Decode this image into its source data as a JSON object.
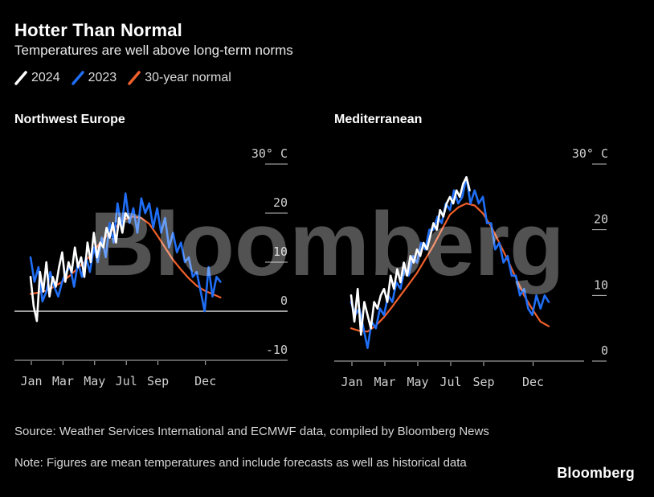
{
  "header": {
    "title": "Hotter Than Normal",
    "subtitle": "Temperatures are well above long-term norms"
  },
  "legend": [
    {
      "label": "2024",
      "color": "#ffffff"
    },
    {
      "label": "2023",
      "color": "#1f6ef5"
    },
    {
      "label": "30-year normal",
      "color": "#f0602b"
    }
  ],
  "footer": {
    "source": "Source: Weather Services International and ECMWF data, compiled by Bloomberg News",
    "note": "Note: Figures are mean temperatures and include forecasts as well as historical data"
  },
  "watermark": "Bloomberg",
  "brand": "Bloomberg",
  "chart_data": [
    {
      "type": "line",
      "title": "Northwest Europe",
      "ylabel": "30° C",
      "ylim": [
        -10,
        30
      ],
      "yticks": [
        -10,
        0,
        10,
        20,
        30
      ],
      "ytick_labels": [
        "-10",
        "0",
        "10",
        "20",
        "30° C"
      ],
      "zero_line": true,
      "x_ticks": [
        "Jan",
        "Mar",
        "May",
        "Jul",
        "Sep",
        "Dec"
      ],
      "x_tick_months": [
        0,
        2,
        4,
        6,
        8,
        11
      ],
      "series": [
        {
          "name": "30-year normal",
          "color": "#f0602b",
          "x": [
            0,
            0.5,
            1,
            1.5,
            2,
            2.5,
            3,
            3.5,
            4,
            4.5,
            5,
            5.5,
            6,
            6.5,
            7,
            7.5,
            8,
            8.5,
            9,
            9.5,
            10,
            10.5,
            11,
            11.5,
            12
          ],
          "y": [
            3.5,
            3.8,
            4.2,
            5,
            6,
            7.3,
            8.8,
            10.3,
            12.3,
            14.3,
            16,
            17.5,
            18.8,
            19.3,
            19,
            17.8,
            15.5,
            13,
            10.5,
            8.5,
            6.7,
            5.2,
            4.2,
            3.5,
            2.8
          ]
        },
        {
          "name": "2023",
          "color": "#1f6ef5",
          "x": [
            0,
            0.25,
            0.5,
            0.75,
            1,
            1.25,
            1.5,
            1.75,
            2,
            2.25,
            2.5,
            2.75,
            3,
            3.25,
            3.5,
            3.75,
            4,
            4.25,
            4.5,
            4.75,
            5,
            5.25,
            5.5,
            5.75,
            6,
            6.25,
            6.5,
            6.75,
            7,
            7.25,
            7.5,
            7.75,
            8,
            8.25,
            8.5,
            8.75,
            9,
            9.25,
            9.5,
            9.75,
            10,
            10.25,
            10.5,
            10.75,
            11,
            11.25,
            11.5,
            11.75,
            12
          ],
          "y": [
            11,
            6,
            9,
            2,
            4,
            8,
            5,
            3,
            6,
            8,
            9,
            5,
            10,
            7,
            11,
            8,
            13,
            10,
            15,
            11,
            18,
            14,
            22,
            17,
            24,
            18,
            21,
            16,
            23,
            20,
            22,
            17,
            21,
            16,
            19,
            13,
            16,
            12,
            14,
            10,
            11,
            7,
            8,
            4,
            0,
            9,
            3,
            7,
            6
          ]
        },
        {
          "name": "2024",
          "color": "#ffffff",
          "x": [
            0,
            0.2,
            0.4,
            0.6,
            0.8,
            1,
            1.2,
            1.4,
            1.6,
            1.8,
            2,
            2.2,
            2.4,
            2.6,
            2.8,
            3,
            3.2,
            3.4,
            3.6,
            3.8,
            4,
            4.2,
            4.4,
            4.6,
            4.8,
            5,
            5.2,
            5.4,
            5.6,
            5.8,
            6,
            6.2
          ],
          "y": [
            7,
            1,
            -2,
            8,
            4,
            10,
            3,
            7,
            5,
            9,
            12,
            6,
            10,
            8,
            13,
            9,
            11,
            7,
            14,
            10,
            16,
            11,
            14,
            13,
            17,
            15,
            18,
            14,
            19,
            16,
            20,
            19
          ]
        }
      ]
    },
    {
      "type": "line",
      "title": "Mediterranean",
      "ylabel": "30° C",
      "ylim": [
        0,
        30
      ],
      "yticks": [
        0,
        10,
        20,
        30
      ],
      "ytick_labels": [
        "0",
        "10",
        "20",
        "30° C"
      ],
      "zero_line": false,
      "x_ticks": [
        "Jan",
        "Mar",
        "May",
        "Jul",
        "Sep",
        "Dec"
      ],
      "x_tick_months": [
        0,
        2,
        4,
        6,
        8,
        11
      ],
      "series": [
        {
          "name": "30-year normal",
          "color": "#f0602b",
          "x": [
            0,
            0.5,
            1,
            1.5,
            2,
            2.5,
            3,
            3.5,
            4,
            4.5,
            5,
            5.5,
            6,
            6.5,
            7,
            7.5,
            8,
            8.5,
            9,
            9.5,
            10,
            10.5,
            11,
            11.5,
            12
          ],
          "y": [
            5,
            4.6,
            4.5,
            5.4,
            6.7,
            8.3,
            10,
            11.7,
            13.4,
            15.5,
            17.6,
            20,
            22.3,
            23.4,
            24,
            23.7,
            22.5,
            20.5,
            18,
            15.4,
            12.7,
            10,
            7.9,
            6,
            5.3
          ]
        },
        {
          "name": "2023",
          "color": "#1f6ef5",
          "x": [
            0,
            0.25,
            0.5,
            0.75,
            1,
            1.25,
            1.5,
            1.75,
            2,
            2.25,
            2.5,
            2.75,
            3,
            3.25,
            3.5,
            3.75,
            4,
            4.25,
            4.5,
            4.75,
            5,
            5.25,
            5.5,
            5.75,
            6,
            6.25,
            6.5,
            6.75,
            7,
            7.25,
            7.5,
            7.75,
            8,
            8.25,
            8.5,
            8.75,
            9,
            9.25,
            9.5,
            9.75,
            10,
            10.25,
            10.5,
            10.75,
            11,
            11.25,
            11.5,
            11.75,
            12
          ],
          "y": [
            9,
            7,
            8,
            5,
            2,
            6,
            5,
            8,
            7,
            10,
            9,
            12,
            11,
            14,
            13,
            16,
            15,
            18,
            17,
            20,
            20,
            22,
            21,
            24,
            23,
            26,
            24,
            25,
            28,
            24,
            26,
            24,
            25,
            21,
            21,
            17,
            18,
            15,
            16,
            13,
            13,
            10,
            11,
            8,
            7,
            10,
            8,
            10,
            9
          ]
        },
        {
          "name": "2024",
          "color": "#ffffff",
          "x": [
            0,
            0.2,
            0.4,
            0.6,
            0.8,
            1,
            1.2,
            1.4,
            1.6,
            1.8,
            2,
            2.2,
            2.4,
            2.6,
            2.8,
            3,
            3.2,
            3.4,
            3.6,
            3.8,
            4,
            4.2,
            4.4,
            4.6,
            4.8,
            5,
            5.2,
            5.4,
            5.6,
            5.8,
            6,
            6.2,
            6.4,
            6.6,
            6.8,
            7,
            7.2
          ],
          "y": [
            10,
            6,
            11,
            4,
            9,
            7,
            5,
            9,
            8,
            10,
            11,
            9,
            13,
            11,
            14,
            12,
            15,
            13,
            16,
            15,
            17,
            16,
            18,
            17,
            19,
            21,
            20,
            23,
            22,
            24,
            25,
            24,
            26,
            25,
            27,
            28,
            26
          ]
        }
      ]
    }
  ]
}
